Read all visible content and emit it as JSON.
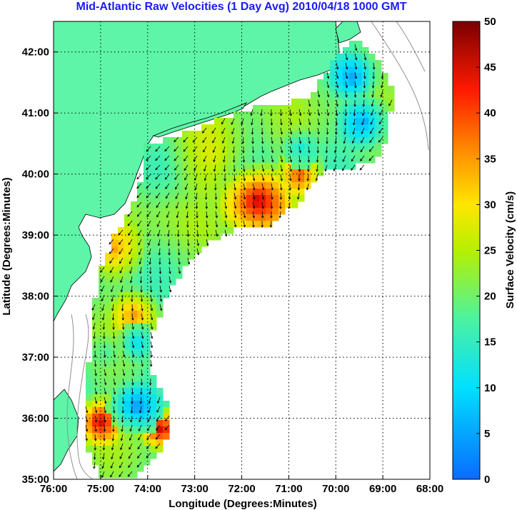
{
  "chart_data": {
    "type": "heatmap",
    "title": "Mid-Atlantic Raw Velocities (1 Day Avg) 2010/04/18 1000 GMT",
    "xlabel": "Longitude (Degrees:Minutes)",
    "ylabel": "Latitude (Degrees:Minutes)",
    "colorbar_label": "Surface Velocity (cm/s)",
    "x_ticks": [
      "76:00",
      "75:00",
      "74:00",
      "73:00",
      "72:00",
      "71:00",
      "70:00",
      "69:00",
      "68:00"
    ],
    "y_ticks": [
      "35:00",
      "36:00",
      "37:00",
      "38:00",
      "39:00",
      "40:00",
      "41:00",
      "42:00"
    ],
    "colorbar_ticks": [
      "0",
      "5",
      "10",
      "15",
      "20",
      "25",
      "30",
      "35",
      "40",
      "45",
      "50"
    ],
    "xlim": [
      -76,
      -68
    ],
    "ylim": [
      35,
      42.5
    ],
    "colorbar_range": [
      0,
      50
    ],
    "grid": true,
    "colors": {
      "land": "#5ef5a8",
      "coast": "#000000",
      "bathymetry": "#909090",
      "grid": "#000000",
      "arrows": "#000000",
      "title": "#1a1aff"
    }
  }
}
